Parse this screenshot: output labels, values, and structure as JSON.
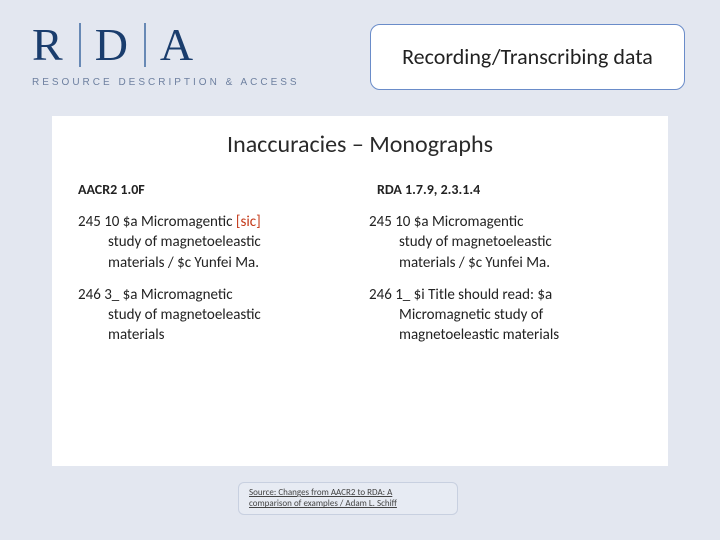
{
  "logo": {
    "letters": [
      "R",
      "D",
      "A"
    ],
    "subtitle": "RESOURCE DESCRIPTION & ACCESS"
  },
  "title_box": "Recording/Transcribing data",
  "content": {
    "heading": "Inaccuracies – Monographs",
    "left": {
      "head": "AACR2  1.0F",
      "e1_line1_a": "245 10 $a Micromagentic ",
      "e1_line1_sic": "[sic]",
      "e1_cont1": "study of magnetoeleastic",
      "e1_cont2": "materials / $c Yunfei Ma.",
      "e2_line1": "246 3_  $a Micromagnetic",
      "e2_cont1": "study of magnetoeleastic",
      "e2_cont2": "materials"
    },
    "right": {
      "head": "RDA  1.7.9, 2.3.1.4",
      "e1_line1": "245 10 $a Micromagentic",
      "e1_cont1": "study of  magnetoeleastic",
      "e1_cont2": "materials / $c Yunfei Ma.",
      "e2_line1": "246 1_  $i Title should read: $a",
      "e2_cont1": "Micromagnetic  study  of",
      "e2_cont2": "magnetoeleastic  materials"
    }
  },
  "source": {
    "l1": "Source: Changes from AACR2 to RDA: A",
    "l2": "comparison of examples / Adam L. Schiff"
  }
}
